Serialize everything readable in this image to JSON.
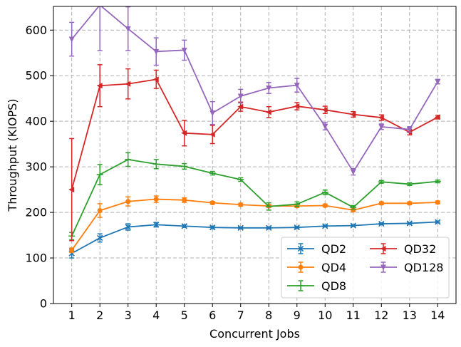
{
  "chart_data": {
    "type": "line",
    "xlabel": "Concurrent Jobs",
    "ylabel": "Throughput (KIOPS)",
    "x": [
      1,
      2,
      3,
      4,
      5,
      6,
      7,
      8,
      9,
      10,
      11,
      12,
      13,
      14
    ],
    "xlim": [
      0.35,
      14.65
    ],
    "ylim": [
      0,
      652
    ],
    "yticks": [
      0,
      100,
      200,
      300,
      400,
      500,
      600
    ],
    "grid": true,
    "grid_style": "dashed",
    "legend": {
      "placement": "lower-right",
      "columns": 2
    },
    "series": [
      {
        "name": "QD2",
        "color": "#1f77b4",
        "marker": "x",
        "values": [
          110,
          144,
          168,
          173,
          170,
          167,
          166,
          166,
          167,
          170,
          171,
          175,
          176,
          179
        ],
        "errors": [
          10,
          9,
          7,
          5,
          3,
          3,
          2,
          2,
          2,
          2,
          2,
          2,
          2,
          2
        ]
      },
      {
        "name": "QD4",
        "color": "#ff7f0e",
        "marker": "o",
        "values": [
          117,
          204,
          224,
          229,
          227,
          221,
          217,
          214,
          214,
          215,
          205,
          220,
          220,
          222
        ],
        "errors": [
          5,
          15,
          10,
          7,
          5,
          3,
          3,
          3,
          3,
          3,
          3,
          3,
          3,
          3
        ]
      },
      {
        "name": "QD8",
        "color": "#2ca02c",
        "marker": "_",
        "values": [
          148,
          283,
          316,
          306,
          301,
          286,
          272,
          213,
          218,
          244,
          211,
          267,
          262,
          268
        ],
        "errors": [
          8,
          22,
          15,
          10,
          6,
          4,
          4,
          8,
          5,
          5,
          4,
          3,
          3,
          3
        ]
      },
      {
        "name": "QD32",
        "color": "#d62728",
        "marker": "<",
        "values": [
          250,
          478,
          482,
          492,
          374,
          371,
          432,
          420,
          433,
          425,
          415,
          408,
          376,
          409
        ],
        "errors": [
          112,
          46,
          33,
          20,
          28,
          20,
          10,
          12,
          8,
          8,
          6,
          6,
          6,
          4
        ]
      },
      {
        "name": "QD128",
        "color": "#9467bd",
        "marker": "v",
        "values": [
          580,
          655,
          603,
          553,
          556,
          418,
          455,
          473,
          479,
          389,
          289,
          388,
          382,
          487
        ],
        "errors": [
          37,
          100,
          48,
          30,
          22,
          25,
          15,
          12,
          15,
          8,
          7,
          6,
          6,
          5
        ]
      }
    ]
  }
}
